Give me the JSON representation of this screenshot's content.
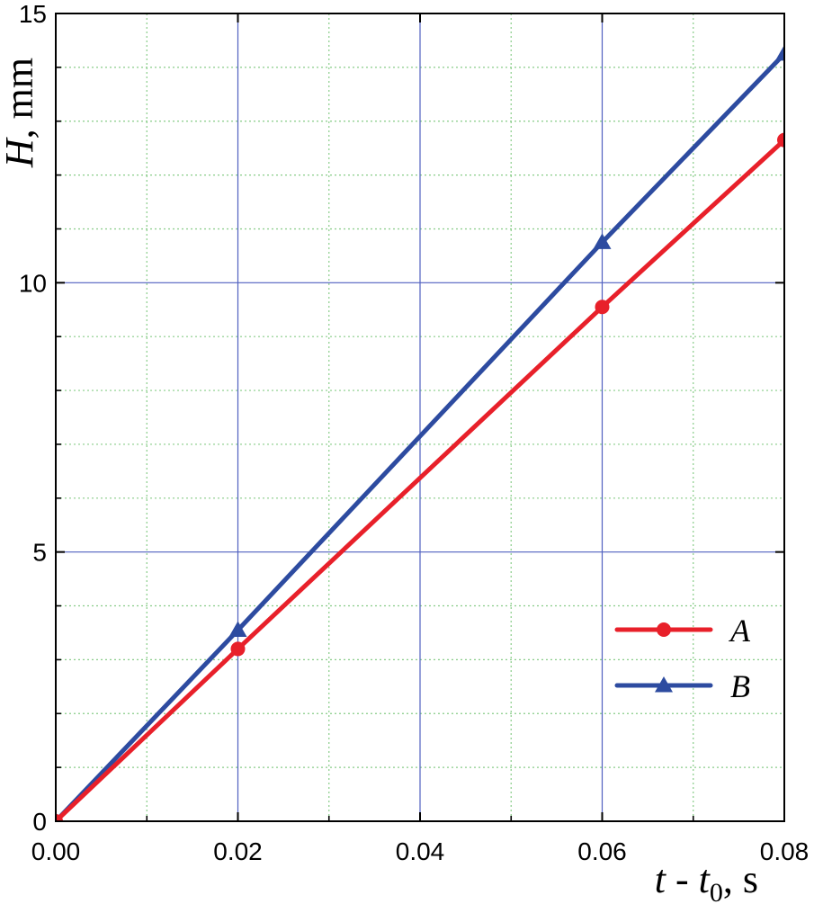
{
  "chart_data": {
    "type": "line",
    "title": "",
    "xlabel": "t - t0, s",
    "xlabel_parts": {
      "var": "t",
      "sep": " - ",
      "var2": "t",
      "sub": "0",
      "unit": ", s"
    },
    "ylabel": "H, mm",
    "ylabel_parts": {
      "var": "H",
      "unit": ", mm"
    },
    "xlim": [
      0,
      0.08
    ],
    "ylim": [
      0,
      15
    ],
    "xticks": [
      0,
      0.02,
      0.04,
      0.06,
      0.08
    ],
    "xtick_labels": [
      "0.00",
      "0.02",
      "0.04",
      "0.06",
      "0.08"
    ],
    "yticks": [
      0,
      5,
      10,
      15
    ],
    "ytick_labels": [
      "0",
      "5",
      "10",
      "15"
    ],
    "grid": {
      "major": true,
      "minor": true,
      "major_color": "#5060c0",
      "minor_color": "#88cc88"
    },
    "legend_position": "lower-right",
    "series": [
      {
        "name": "A",
        "color": "#e8202a",
        "marker": "circle",
        "x": [
          0,
          0.02,
          0.06,
          0.08
        ],
        "y": [
          0,
          3.2,
          9.55,
          12.65
        ]
      },
      {
        "name": "B",
        "color": "#2d4ba0",
        "marker": "triangle",
        "x": [
          0,
          0.02,
          0.06,
          0.08
        ],
        "y": [
          0,
          3.55,
          10.75,
          14.25
        ]
      }
    ]
  }
}
